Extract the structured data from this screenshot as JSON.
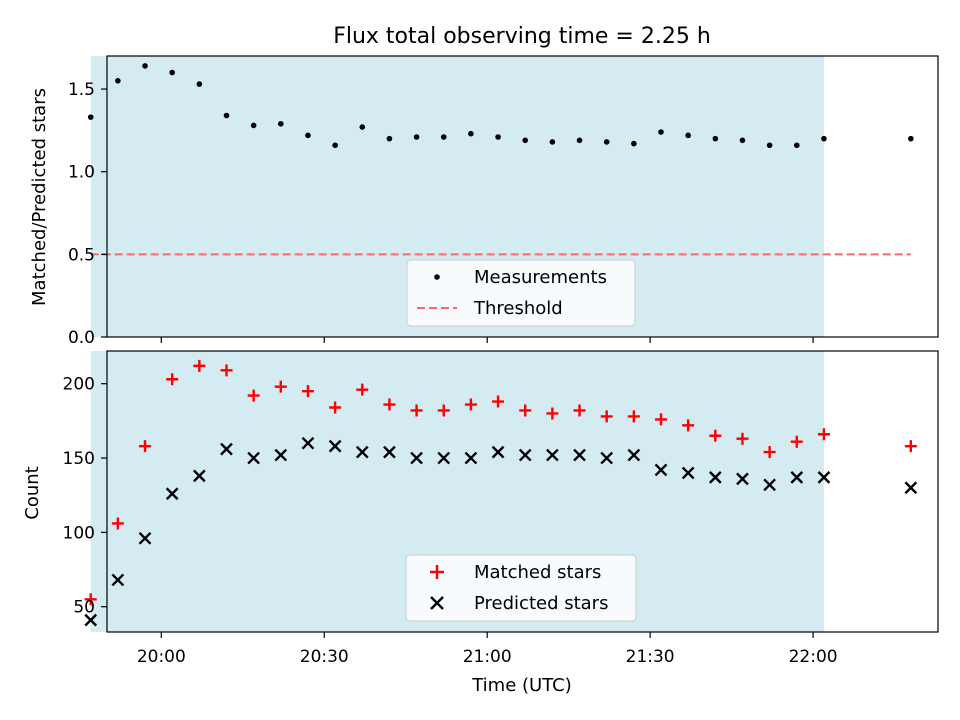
{
  "figure": {
    "title": "Flux total observing time = 2.25 h"
  },
  "colors": {
    "shade": "#add8e6",
    "threshold": "#ff6666",
    "matched": "#ff0000",
    "predicted": "#000000",
    "measurement": "#000000"
  },
  "chart_data": [
    {
      "type": "scatter",
      "ylabel": "Matched/Predicted stars",
      "xlim": [
        "19:50",
        "22:23"
      ],
      "ylim": [
        0,
        1.7
      ],
      "yticks": [
        0.0,
        0.5,
        1.0,
        1.5
      ],
      "ytick_labels": [
        "0.0",
        "0.5",
        "1.0",
        "1.5"
      ],
      "shaded_span": [
        "19:47",
        "22:02"
      ],
      "x": [
        "19:47",
        "19:52",
        "19:57",
        "20:02",
        "20:07",
        "20:12",
        "20:17",
        "20:22",
        "20:27",
        "20:32",
        "20:37",
        "20:42",
        "20:47",
        "20:52",
        "20:57",
        "21:02",
        "21:07",
        "21:12",
        "21:17",
        "21:22",
        "21:27",
        "21:32",
        "21:37",
        "21:42",
        "21:47",
        "21:52",
        "21:57",
        "22:02",
        "22:18"
      ],
      "series": [
        {
          "name": "Measurements",
          "style": "dot",
          "values": [
            1.33,
            1.55,
            1.64,
            1.6,
            1.53,
            1.34,
            1.28,
            1.29,
            1.22,
            1.16,
            1.27,
            1.2,
            1.21,
            1.21,
            1.23,
            1.21,
            1.19,
            1.18,
            1.19,
            1.18,
            1.17,
            1.24,
            1.22,
            1.2,
            1.19,
            1.16,
            1.16,
            1.2,
            1.2
          ]
        }
      ],
      "threshold": {
        "name": "Threshold",
        "value": 0.5,
        "x_range": [
          "19:47",
          "22:18"
        ]
      },
      "legend": {
        "placement": "lower-center",
        "entries": [
          "Measurements",
          "Threshold"
        ]
      }
    },
    {
      "type": "scatter",
      "xlabel": "Time (UTC)",
      "ylabel": "Count",
      "xlim": [
        "19:50",
        "22:23"
      ],
      "ylim": [
        33,
        222
      ],
      "yticks": [
        50,
        100,
        150,
        200
      ],
      "ytick_labels": [
        "50",
        "100",
        "150",
        "200"
      ],
      "xticks": [
        "20:00",
        "20:30",
        "21:00",
        "21:30",
        "22:00"
      ],
      "shaded_span": [
        "19:47",
        "22:02"
      ],
      "x": [
        "19:47",
        "19:52",
        "19:57",
        "20:02",
        "20:07",
        "20:12",
        "20:17",
        "20:22",
        "20:27",
        "20:32",
        "20:37",
        "20:42",
        "20:47",
        "20:52",
        "20:57",
        "21:02",
        "21:07",
        "21:12",
        "21:17",
        "21:22",
        "21:27",
        "21:32",
        "21:37",
        "21:42",
        "21:47",
        "21:52",
        "21:57",
        "22:02",
        "22:18"
      ],
      "series": [
        {
          "name": "Matched stars",
          "marker": "+",
          "values": [
            55,
            106,
            158,
            203,
            212,
            209,
            192,
            198,
            195,
            184,
            196,
            186,
            182,
            182,
            186,
            188,
            182,
            180,
            182,
            178,
            178,
            176,
            172,
            165,
            163,
            154,
            161,
            166,
            158
          ]
        },
        {
          "name": "Predicted stars",
          "marker": "x",
          "values": [
            41,
            68,
            96,
            126,
            138,
            156,
            150,
            152,
            160,
            158,
            154,
            154,
            150,
            150,
            150,
            154,
            152,
            152,
            152,
            150,
            152,
            142,
            140,
            137,
            136,
            132,
            137,
            137,
            130
          ]
        }
      ],
      "legend": {
        "placement": "lower-center",
        "entries": [
          "Matched stars",
          "Predicted stars"
        ]
      }
    }
  ]
}
